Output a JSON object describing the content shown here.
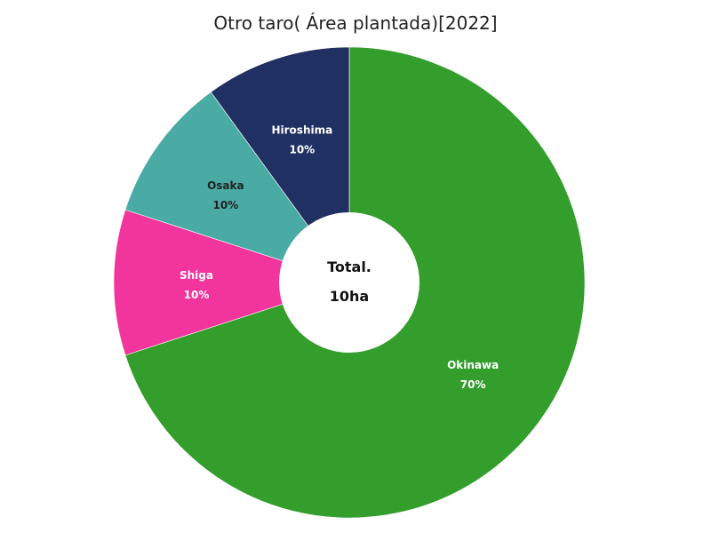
{
  "chart_data": {
    "type": "pie",
    "title": "Otro taro( Área plantada)[2022]",
    "categories": [
      "Okinawa",
      "Shiga",
      "Osaka",
      "Hiroshima"
    ],
    "values": [
      70,
      10,
      10,
      10
    ],
    "percent_labels": [
      "70%",
      "10%",
      "10%",
      "10%"
    ],
    "colors": [
      "#339e2c",
      "#f2359c",
      "#4aaba4",
      "#213063"
    ],
    "label_colors": [
      "#ffffff",
      "#ffffff",
      "#222222",
      "#ffffff"
    ],
    "center_label": {
      "line1": "Total.",
      "line2": "10ha"
    },
    "donut": true
  }
}
